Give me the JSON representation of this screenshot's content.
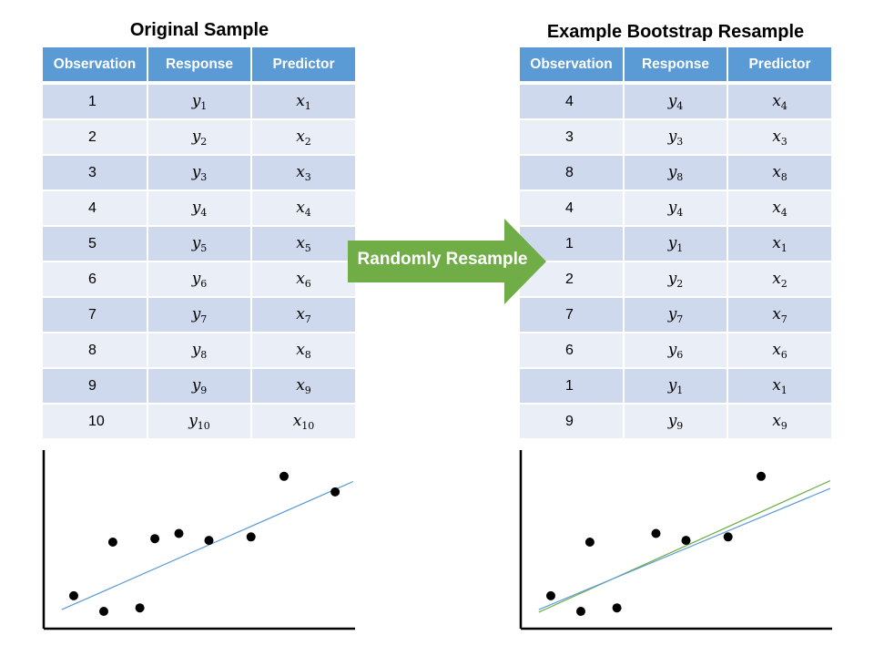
{
  "left": {
    "title": "Original Sample",
    "headers": [
      "Observation",
      "Response",
      "Predictor"
    ],
    "rows": [
      {
        "obs": "1",
        "idx": "1"
      },
      {
        "obs": "2",
        "idx": "2"
      },
      {
        "obs": "3",
        "idx": "3"
      },
      {
        "obs": "4",
        "idx": "4"
      },
      {
        "obs": "5",
        "idx": "5"
      },
      {
        "obs": "6",
        "idx": "6"
      },
      {
        "obs": "7",
        "idx": "7"
      },
      {
        "obs": "8",
        "idx": "8"
      },
      {
        "obs": "9",
        "idx": "9"
      },
      {
        "obs": "10",
        "idx": "10"
      }
    ]
  },
  "right": {
    "title": "Example Bootstrap Resample",
    "headers": [
      "Observation",
      "Response",
      "Predictor"
    ],
    "rows": [
      {
        "obs": "4",
        "idx": "4"
      },
      {
        "obs": "3",
        "idx": "3"
      },
      {
        "obs": "8",
        "idx": "8"
      },
      {
        "obs": "4",
        "idx": "4"
      },
      {
        "obs": "1",
        "idx": "1"
      },
      {
        "obs": "2",
        "idx": "2"
      },
      {
        "obs": "7",
        "idx": "7"
      },
      {
        "obs": "6",
        "idx": "6"
      },
      {
        "obs": "1",
        "idx": "1"
      },
      {
        "obs": "9",
        "idx": "9"
      }
    ]
  },
  "arrow": {
    "label": "Randomly Resample",
    "color": "#70ad47"
  },
  "plots": {
    "dot_color": "#000000",
    "original_fit_color": "#5b9bd5",
    "bootstrap_fit_color": "#70ad47",
    "left": {
      "points": [
        [
          1.0,
          1.9
        ],
        [
          2.0,
          1.0
        ],
        [
          2.3,
          5.0
        ],
        [
          3.2,
          1.2
        ],
        [
          3.7,
          5.2
        ],
        [
          4.5,
          5.5
        ],
        [
          5.5,
          5.1
        ],
        [
          6.9,
          5.3
        ],
        [
          8.0,
          8.8
        ],
        [
          9.7,
          7.9
        ]
      ],
      "fit": [
        [
          0.6,
          1.1
        ],
        [
          10.3,
          8.5
        ]
      ]
    },
    "right": {
      "points": [
        [
          1.0,
          1.9
        ],
        [
          2.0,
          1.0
        ],
        [
          2.3,
          5.0
        ],
        [
          3.2,
          1.2
        ],
        [
          4.5,
          5.5
        ],
        [
          5.5,
          5.1
        ],
        [
          6.9,
          5.3
        ],
        [
          8.0,
          8.8
        ]
      ],
      "fit": [
        [
          0.6,
          1.1
        ],
        [
          10.3,
          8.1
        ]
      ],
      "resample_fit": [
        [
          0.6,
          0.95
        ],
        [
          10.3,
          8.55
        ]
      ]
    }
  }
}
